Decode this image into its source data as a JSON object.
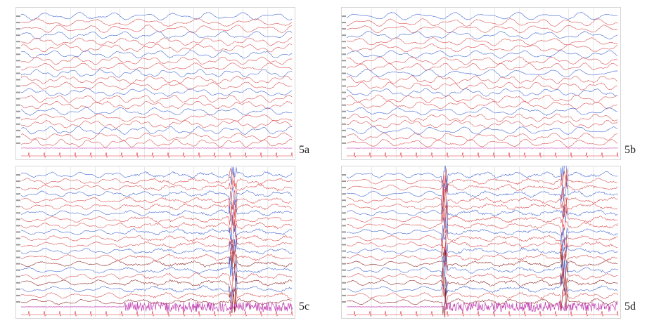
{
  "panels": [
    {
      "id": "5a",
      "label": "5a",
      "channel_count": 21,
      "artifact": "none"
    },
    {
      "id": "5b",
      "label": "5b",
      "channel_count": 21,
      "artifact": "none"
    },
    {
      "id": "5c",
      "label": "5c",
      "channel_count": 21,
      "artifact": "emg-burst-from-middle"
    },
    {
      "id": "5d",
      "label": "5d",
      "channel_count": 21,
      "artifact": "emg-burst-from-middle"
    }
  ],
  "colors": {
    "trace_blue": "#3a5fd0",
    "trace_red": "#d9474a",
    "trace_dark_red": "#8b1a1a",
    "emg_magenta": "#c040b0",
    "grid": "#cfcfcf",
    "ecg_red": "#e0303a"
  }
}
